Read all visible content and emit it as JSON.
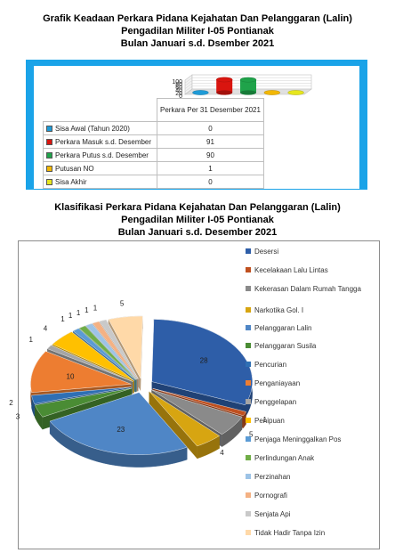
{
  "chart_data": [
    {
      "type": "bar",
      "title": "Grafik Keadaan Perkara Pidana Kejahatan Dan Pelanggaran (Lalin)\nPengadilan Militer I-05 Pontianak\nBulan Januari s.d. Dsember 2021",
      "categories": [
        "Perkara Per 31 Desember 2021"
      ],
      "series": [
        {
          "name": "Sisa Awal (Tahun 2020)",
          "values": [
            0
          ],
          "color": "#1f9bd7"
        },
        {
          "name": "Perkara Masuk s.d. Desember",
          "values": [
            91
          ],
          "color": "#d9150f"
        },
        {
          "name": "Perkara Putus s.d. Desember",
          "values": [
            90
          ],
          "color": "#1fa34a"
        },
        {
          "name": "Putusan NO",
          "values": [
            1
          ],
          "color": "#f2b705"
        },
        {
          "name": "Sisa Akhir",
          "values": [
            0
          ],
          "color": "#e6e61e"
        }
      ],
      "yticks": [
        "100",
        "80",
        "60",
        "40",
        "20",
        "0"
      ],
      "ylim": [
        0,
        100
      ]
    },
    {
      "type": "pie",
      "title": "Klasifikasi Perkara Pidana Kejahatan Dan Pelanggaran (Lalin)\nPengadilan Militer I-05 Pontianak\nBulan Januari s.d. Desember 2021",
      "slices": [
        {
          "label": "Desersi",
          "value": 28,
          "color": "#2e5ea8"
        },
        {
          "label": "Kecelakaan Lalu Lintas",
          "value": 1,
          "color": "#c0501f"
        },
        {
          "label": "Kekerasan Dalam Rumah Tangga",
          "value": 5,
          "color": "#8a8a8a"
        },
        {
          "label": "Narkotika Gol. I",
          "value": 4,
          "color": "#d7a511"
        },
        {
          "label": "Pelanggaran Lalin",
          "value": 23,
          "color": "#4f86c6"
        },
        {
          "label": "Pelanggaran Susila",
          "value": 3,
          "color": "#4a8c34"
        },
        {
          "label": "Pencurian",
          "value": 2,
          "color": "#2f6fb4"
        },
        {
          "label": "Penganiayaan",
          "value": 10,
          "color": "#ed7d31"
        },
        {
          "label": "Penggelapan",
          "value": 1,
          "color": "#a5a5a5"
        },
        {
          "label": "Penipuan",
          "value": 4,
          "color": "#ffc000"
        },
        {
          "label": "Penjaga Meninggalkan Pos",
          "value": 1,
          "color": "#5b9bd5"
        },
        {
          "label": "Perlindungan Anak",
          "value": 1,
          "color": "#70ad47"
        },
        {
          "label": "Perzinahan",
          "value": 1,
          "color": "#9dc3e6"
        },
        {
          "label": "Pornografi",
          "value": 1,
          "color": "#f4b183"
        },
        {
          "label": "Senjata Api",
          "value": 1,
          "color": "#c9c9c9"
        },
        {
          "label": "Tidak Hadir Tanpa Izin",
          "value": 5,
          "color": "#ffd9a8"
        }
      ]
    }
  ],
  "table": {
    "header": "Perkara Per 31 Desember 2021",
    "rows": [
      {
        "label": "Sisa Awal (Tahun 2020)",
        "value": "0"
      },
      {
        "label": "Perkara Masuk s.d. Desember",
        "value": "91"
      },
      {
        "label": "Perkara Putus s.d. Desember",
        "value": "90"
      },
      {
        "label": "Putusan NO",
        "value": "1"
      },
      {
        "label": "Sisa Akhir",
        "value": "0"
      }
    ]
  },
  "colors": {
    "frame_blue": "#1aa3e8"
  }
}
